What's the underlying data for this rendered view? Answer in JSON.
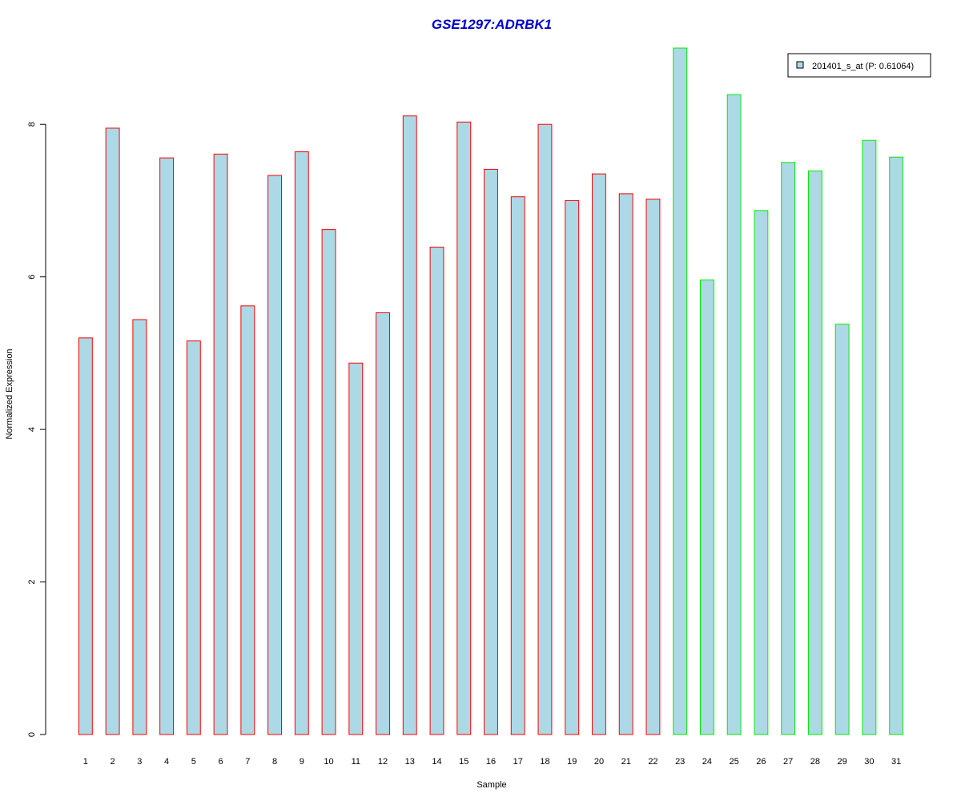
{
  "chart_data": {
    "type": "bar",
    "title": "GSE1297:ADRBK1",
    "xlabel": "Sample",
    "ylabel": "Normalized Expression",
    "categories": [
      "1",
      "2",
      "3",
      "4",
      "5",
      "6",
      "7",
      "8",
      "9",
      "10",
      "11",
      "12",
      "13",
      "14",
      "15",
      "16",
      "17",
      "18",
      "19",
      "20",
      "21",
      "22",
      "23",
      "24",
      "25",
      "26",
      "27",
      "28",
      "29",
      "30",
      "31"
    ],
    "series": [
      {
        "name": "201401_s_at (P: 0.61064)",
        "values": [
          5.2,
          7.95,
          5.44,
          7.56,
          5.16,
          7.61,
          5.62,
          7.33,
          7.64,
          6.62,
          4.87,
          5.53,
          8.11,
          6.39,
          8.03,
          7.41,
          7.05,
          8.0,
          7.0,
          7.35,
          7.09,
          7.02,
          9.0,
          5.96,
          8.39,
          6.87,
          7.5,
          7.39,
          5.38,
          7.79,
          7.57
        ]
      }
    ],
    "groups": [
      "red",
      "red",
      "red",
      "red",
      "red",
      "red",
      "red",
      "red",
      "red",
      "red",
      "red",
      "red",
      "red",
      "red",
      "red",
      "red",
      "red",
      "red",
      "red",
      "red",
      "red",
      "red",
      "green",
      "green",
      "green",
      "green",
      "green",
      "green",
      "green",
      "green",
      "green"
    ],
    "ylim": [
      0,
      9
    ],
    "yticks": [
      0,
      2,
      4,
      6,
      8
    ],
    "grid": false,
    "legend_position": "top-right",
    "colors": {
      "bar_fill": "#add8e6",
      "group_red": "#ff0000",
      "group_green": "#00ee00",
      "title": "#0000cc",
      "axis": "#000000"
    }
  }
}
